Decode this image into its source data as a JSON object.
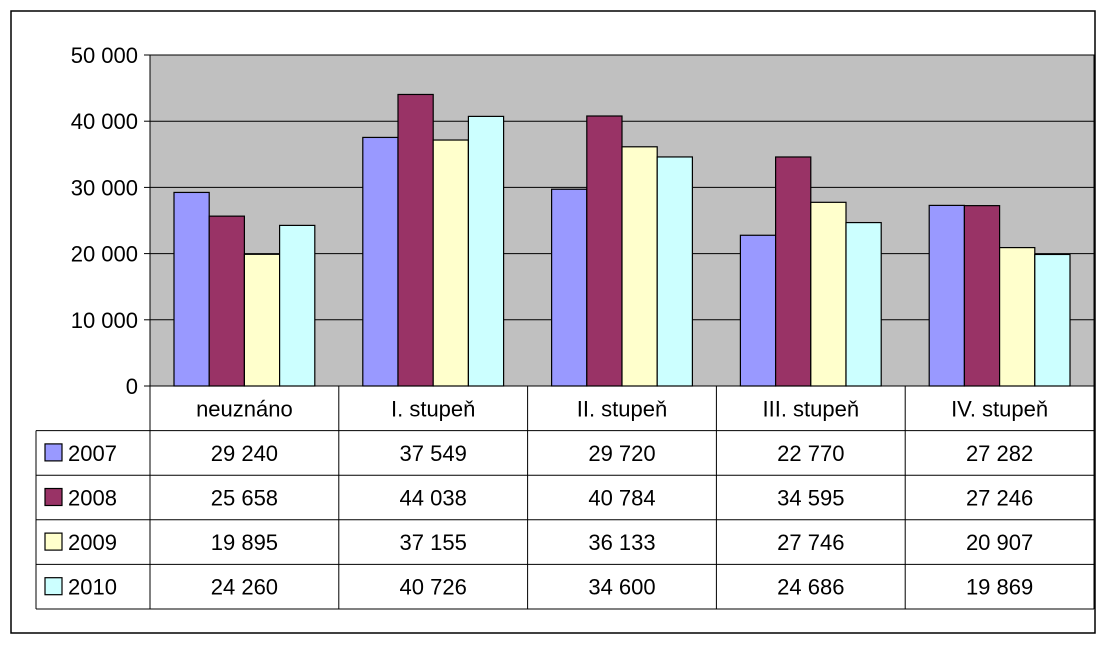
{
  "chart_data": {
    "type": "bar",
    "categories": [
      "neuznáno",
      "I. stupeň",
      "II. stupeň",
      "III. stupeň",
      "IV. stupeň"
    ],
    "series": [
      {
        "name": "2007",
        "color": "#9999ff",
        "values": [
          29240,
          37549,
          29720,
          22770,
          27282
        ],
        "labels": [
          "29 240",
          "37 549",
          "29 720",
          "22 770",
          "27 282"
        ]
      },
      {
        "name": "2008",
        "color": "#993366",
        "values": [
          25658,
          44038,
          40784,
          34595,
          27246
        ],
        "labels": [
          "25 658",
          "44 038",
          "40 784",
          "34 595",
          "27 246"
        ]
      },
      {
        "name": "2009",
        "color": "#ffffcc",
        "values": [
          19895,
          37155,
          36133,
          27746,
          20907
        ],
        "labels": [
          "19 895",
          "37 155",
          "36 133",
          "27 746",
          "20 907"
        ]
      },
      {
        "name": "2010",
        "color": "#ccffff",
        "values": [
          24260,
          40726,
          34600,
          24686,
          19869
        ],
        "labels": [
          "24 260",
          "40 726",
          "34 600",
          "24 686",
          "19 869"
        ]
      }
    ],
    "y_ticks": [
      0,
      10000,
      20000,
      30000,
      40000,
      50000
    ],
    "y_tick_labels": [
      "0",
      "10 000",
      "20 000",
      "30 000",
      "40 000",
      "50 000"
    ],
    "ylim": [
      0,
      50000
    ],
    "grid": true,
    "plot_background": "#c0c0c0",
    "legend": "data-table-left",
    "data_table": true
  }
}
